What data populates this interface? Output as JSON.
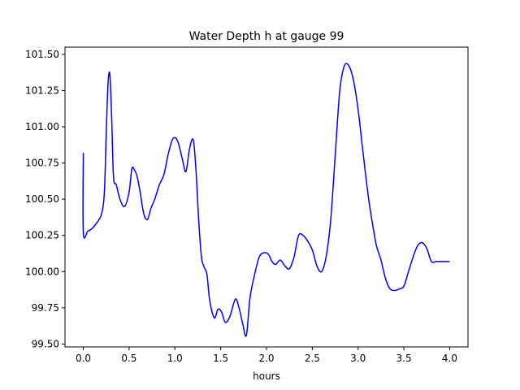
{
  "chart_data": {
    "type": "line",
    "title": "Water Depth h at gauge 99",
    "xlabel": "hours",
    "ylabel": "",
    "xlim": [
      -0.2,
      4.2
    ],
    "ylim": [
      99.48,
      101.55
    ],
    "xticks": [
      0.0,
      0.5,
      1.0,
      1.5,
      2.0,
      2.5,
      3.0,
      3.5,
      4.0
    ],
    "xtick_labels": [
      "0.0",
      "0.5",
      "1.0",
      "1.5",
      "2.0",
      "2.5",
      "3.0",
      "3.5",
      "4.0"
    ],
    "yticks": [
      99.5,
      99.75,
      100.0,
      100.25,
      100.5,
      100.75,
      101.0,
      101.25,
      101.5
    ],
    "ytick_labels": [
      "99.50",
      "99.75",
      "100.00",
      "100.25",
      "100.50",
      "100.75",
      "101.00",
      "101.25",
      "101.50"
    ],
    "grid": false,
    "series": [
      {
        "color": "#0000ff",
        "x": [
          0.0,
          0.0,
          0.05,
          0.1,
          0.15,
          0.2,
          0.23,
          0.25,
          0.27,
          0.29,
          0.31,
          0.33,
          0.36,
          0.4,
          0.45,
          0.5,
          0.53,
          0.56,
          0.59,
          0.62,
          0.66,
          0.7,
          0.74,
          0.78,
          0.83,
          0.88,
          0.93,
          0.98,
          1.03,
          1.08,
          1.12,
          1.16,
          1.2,
          1.23,
          1.26,
          1.29,
          1.32,
          1.35,
          1.38,
          1.43,
          1.47,
          1.51,
          1.55,
          1.6,
          1.66,
          1.7,
          1.74,
          1.78,
          1.82,
          1.87,
          1.92,
          1.97,
          2.02,
          2.06,
          2.1,
          2.15,
          2.2,
          2.25,
          2.3,
          2.35,
          2.4,
          2.45,
          2.5,
          2.55,
          2.6,
          2.65,
          2.7,
          2.75,
          2.8,
          2.85,
          2.9,
          2.95,
          3.0,
          3.04,
          3.08,
          3.12,
          3.16,
          3.2,
          3.25,
          3.3,
          3.35,
          3.4,
          3.45,
          3.5,
          3.55,
          3.6,
          3.65,
          3.7,
          3.75,
          3.8,
          3.85,
          3.9,
          3.93,
          3.97,
          4.0
        ],
        "y": [
          100.82,
          100.27,
          100.28,
          100.3,
          100.34,
          100.4,
          100.55,
          100.95,
          101.3,
          101.36,
          101.05,
          100.65,
          100.6,
          100.5,
          100.45,
          100.55,
          100.71,
          100.7,
          100.65,
          100.55,
          100.4,
          100.36,
          100.44,
          100.5,
          100.6,
          100.67,
          100.82,
          100.92,
          100.9,
          100.78,
          100.69,
          100.85,
          100.91,
          100.7,
          100.35,
          100.1,
          100.03,
          99.98,
          99.8,
          99.68,
          99.74,
          99.72,
          99.65,
          99.69,
          99.81,
          99.75,
          99.64,
          99.56,
          99.82,
          99.98,
          100.1,
          100.13,
          100.12,
          100.07,
          100.05,
          100.08,
          100.04,
          100.02,
          100.1,
          100.25,
          100.25,
          100.21,
          100.15,
          100.04,
          100.0,
          100.1,
          100.35,
          100.8,
          101.25,
          101.42,
          101.42,
          101.32,
          101.12,
          100.9,
          100.68,
          100.48,
          100.32,
          100.18,
          100.08,
          99.95,
          99.88,
          99.87,
          99.88,
          99.9,
          100.0,
          100.1,
          100.18,
          100.2,
          100.16,
          100.07,
          100.07,
          100.07,
          100.07,
          100.07,
          100.07
        ]
      }
    ]
  }
}
